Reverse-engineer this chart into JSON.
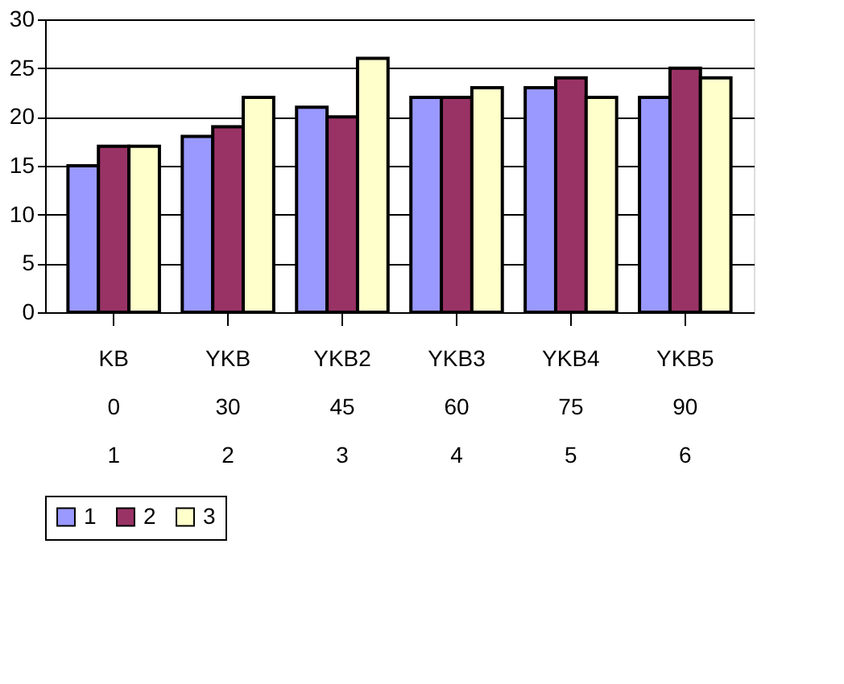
{
  "chart_data": {
    "type": "bar",
    "categories": [
      "KB\n0\n1",
      "YKB\n30\n2",
      "YKB2\n45\n3",
      "YKB3\n60\n4",
      "YKB4\n75\n5",
      "YKB5\n90\n6"
    ],
    "series": [
      {
        "name": "1",
        "color": "#9999ff",
        "values": [
          15,
          18,
          21,
          22,
          23,
          22
        ]
      },
      {
        "name": "2",
        "color": "#993366",
        "values": [
          17,
          19,
          20,
          22,
          24,
          25
        ]
      },
      {
        "name": "3",
        "color": "#ffffcc",
        "values": [
          17,
          22,
          26,
          23,
          22,
          24
        ]
      }
    ],
    "ylim": [
      0,
      30
    ],
    "yticks": [
      0,
      5,
      10,
      15,
      20,
      25,
      30
    ],
    "grid": "y",
    "legend": "bottom"
  }
}
